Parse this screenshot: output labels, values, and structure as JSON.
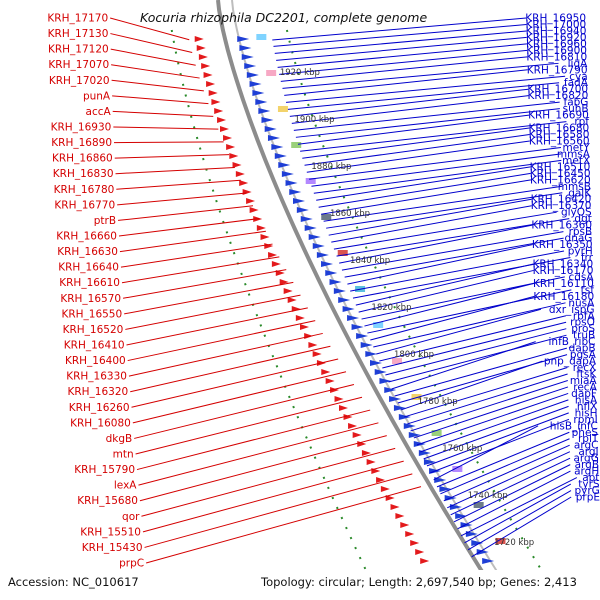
{
  "title": "Kocuria rhizophila DC2201, complete genome",
  "footer": {
    "accession": "Accession: NC_010617",
    "topology": "Topology: circular; Length: 2,697,540 bp; Genes: 2,413"
  },
  "colors": {
    "left_label": "#d40000",
    "right_label": "#0000cc",
    "backbone": "#8c8c8c",
    "forward_arrow": "#e31a1c",
    "reverse_arrow": "#1f3fd6",
    "ruler": "#2a8a2a"
  },
  "kbp_labels": [
    "1920 kbp",
    "1900 kbp",
    "1880 kbp",
    "1860 kbp",
    "1840 kbp",
    "1820 kbp",
    "1800 kbp",
    "1780 kbp",
    "1760 kbp",
    "1740 kbp",
    "1720 kbp"
  ],
  "left_labels": [
    "KRH_17170",
    "KRH_17130",
    "KRH_17120",
    "KRH_17070",
    "KRH_17020",
    "punA",
    "accA",
    "KRH_16930",
    "KRH_16890",
    "KRH_16860",
    "KRH_16830",
    "KRH_16780",
    "KRH_16770",
    "ptrB",
    "KRH_16660",
    "KRH_16630",
    "KRH_16640",
    "KRH_16610",
    "KRH_16570",
    "KRH_16550",
    "KRH_16520",
    "KRH_16410",
    "KRH_16400",
    "KRH_16330",
    "KRH_16320",
    "KRH_16260",
    "KRH_16080",
    "dkgB",
    "mtn",
    "KRH_15790",
    "lexA",
    "KRH_15680",
    "qor",
    "KRH_15510",
    "KRH_15430",
    "prpC"
  ],
  "right_labels": [
    "KRH_16950",
    "KRH_17000",
    "KRH_16940",
    "KRH_16920",
    "KRH_16960",
    "KRH_16900",
    "KRH_16810",
    "ligA",
    "KRH_16790",
    "cya",
    "fadA",
    "KRH_16700",
    "KRH_16820",
    "fabG",
    "suhB",
    "KRH_16690",
    "rpf",
    "KRH_16680",
    "KRH_16580",
    "KRH_16560",
    "metY",
    "mmsA",
    "metX",
    "KRH_16510",
    "KRH_16450",
    "KRH_16620",
    "mmsB",
    "galK",
    "KRH_16420",
    "KRH_16370",
    "glyQS",
    "dgt",
    "KRH_16360",
    "rpsB",
    "dnaG",
    "KRH_16350",
    "pyrH",
    "frr",
    "KRH_16340",
    "KRH_16170",
    "cdsA",
    "KRH_16110",
    "tsf",
    "KRH_16180",
    "nusA",
    "dxr_ispG",
    "rbfA",
    "rpsO",
    "proS",
    "truB",
    "infB_ribC",
    "dapB",
    "pgsA",
    "pnp_dapA",
    "recX",
    "ftsK",
    "miaA",
    "recA",
    "dapF",
    "hisA",
    "hflX",
    "hisH",
    "rpmI",
    "hisB_infC",
    "pheS",
    "rplT",
    "argC",
    "argJ",
    "argG",
    "argB",
    "argH",
    "apt",
    "tyrS",
    "pyrG",
    "prpE"
  ]
}
